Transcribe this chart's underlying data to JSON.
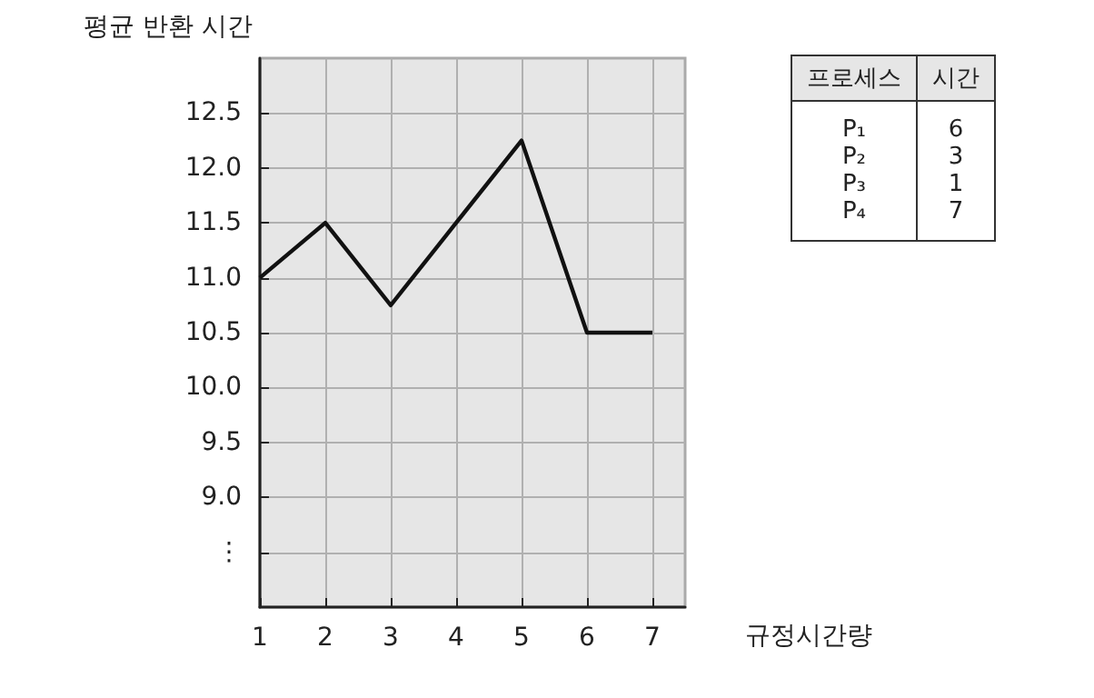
{
  "chart_data": {
    "type": "line",
    "xlabel": "규정시간량",
    "ylabel": "평균 반환 시간",
    "x": [
      1,
      2,
      3,
      4,
      5,
      6,
      7
    ],
    "series": [
      {
        "color": "#111111",
        "values": [
          11.0,
          11.5,
          10.75,
          11.5,
          12.25,
          10.5,
          10.5
        ]
      }
    ],
    "xlim": [
      1,
      7.5
    ],
    "xticks": [
      1,
      2,
      3,
      4,
      5,
      6,
      7
    ],
    "ylim": [
      8.0,
      13.0
    ],
    "yticks": [
      {
        "value": 8.5,
        "label": "⋮"
      },
      {
        "value": 9.0,
        "label": "9.0"
      },
      {
        "value": 9.5,
        "label": "9.5"
      },
      {
        "value": 10.0,
        "label": "10.0"
      },
      {
        "value": 10.5,
        "label": "10.5"
      },
      {
        "value": 11.0,
        "label": "11.0"
      },
      {
        "value": 11.5,
        "label": "11.5"
      },
      {
        "value": 12.0,
        "label": "12.0"
      },
      {
        "value": 12.5,
        "label": "12.5"
      }
    ],
    "grid": true,
    "marker": "none",
    "line_style": "solid",
    "annotations": [
      "프로세스",
      "시간",
      "P₁",
      "6",
      "P₂",
      "3",
      "P₃",
      "1",
      "P₄",
      "7"
    ]
  }
}
